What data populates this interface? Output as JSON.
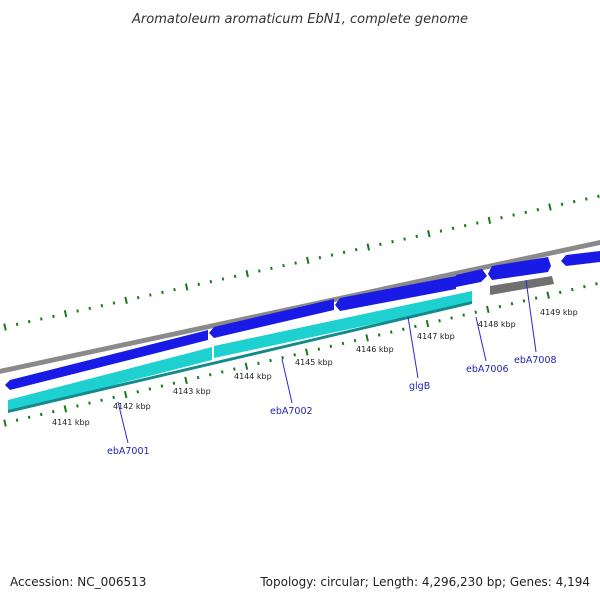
{
  "title": "Aromatoleum aromaticum EbN1, complete genome",
  "footer": {
    "accession": "Accession: NC_006513",
    "summary": "Topology: circular; Length: 4,296,230 bp; Genes: 4,194"
  },
  "colors": {
    "backbone": "#8a8a8a",
    "forward_gene": "#1a1ae6",
    "reverse_gene": "#1fd0d0",
    "other_gene": "#707070",
    "ticks": "#1a7a1a",
    "gene_label": "#1f1fb5",
    "label_line": "#2a2ad0"
  },
  "ticks": [
    {
      "label": "4141 kbp"
    },
    {
      "label": "4142 kbp"
    },
    {
      "label": "4143 kbp"
    },
    {
      "label": "4144 kbp"
    },
    {
      "label": "4145 kbp"
    },
    {
      "label": "4146 kbp"
    },
    {
      "label": "4147 kbp"
    },
    {
      "label": "4148 kbp"
    },
    {
      "label": "4149 kbp"
    }
  ],
  "gene_labels": [
    {
      "name": "ebA7001"
    },
    {
      "name": "ebA7002"
    },
    {
      "name": "glgB"
    },
    {
      "name": "ebA7006"
    },
    {
      "name": "ebA7008"
    }
  ]
}
